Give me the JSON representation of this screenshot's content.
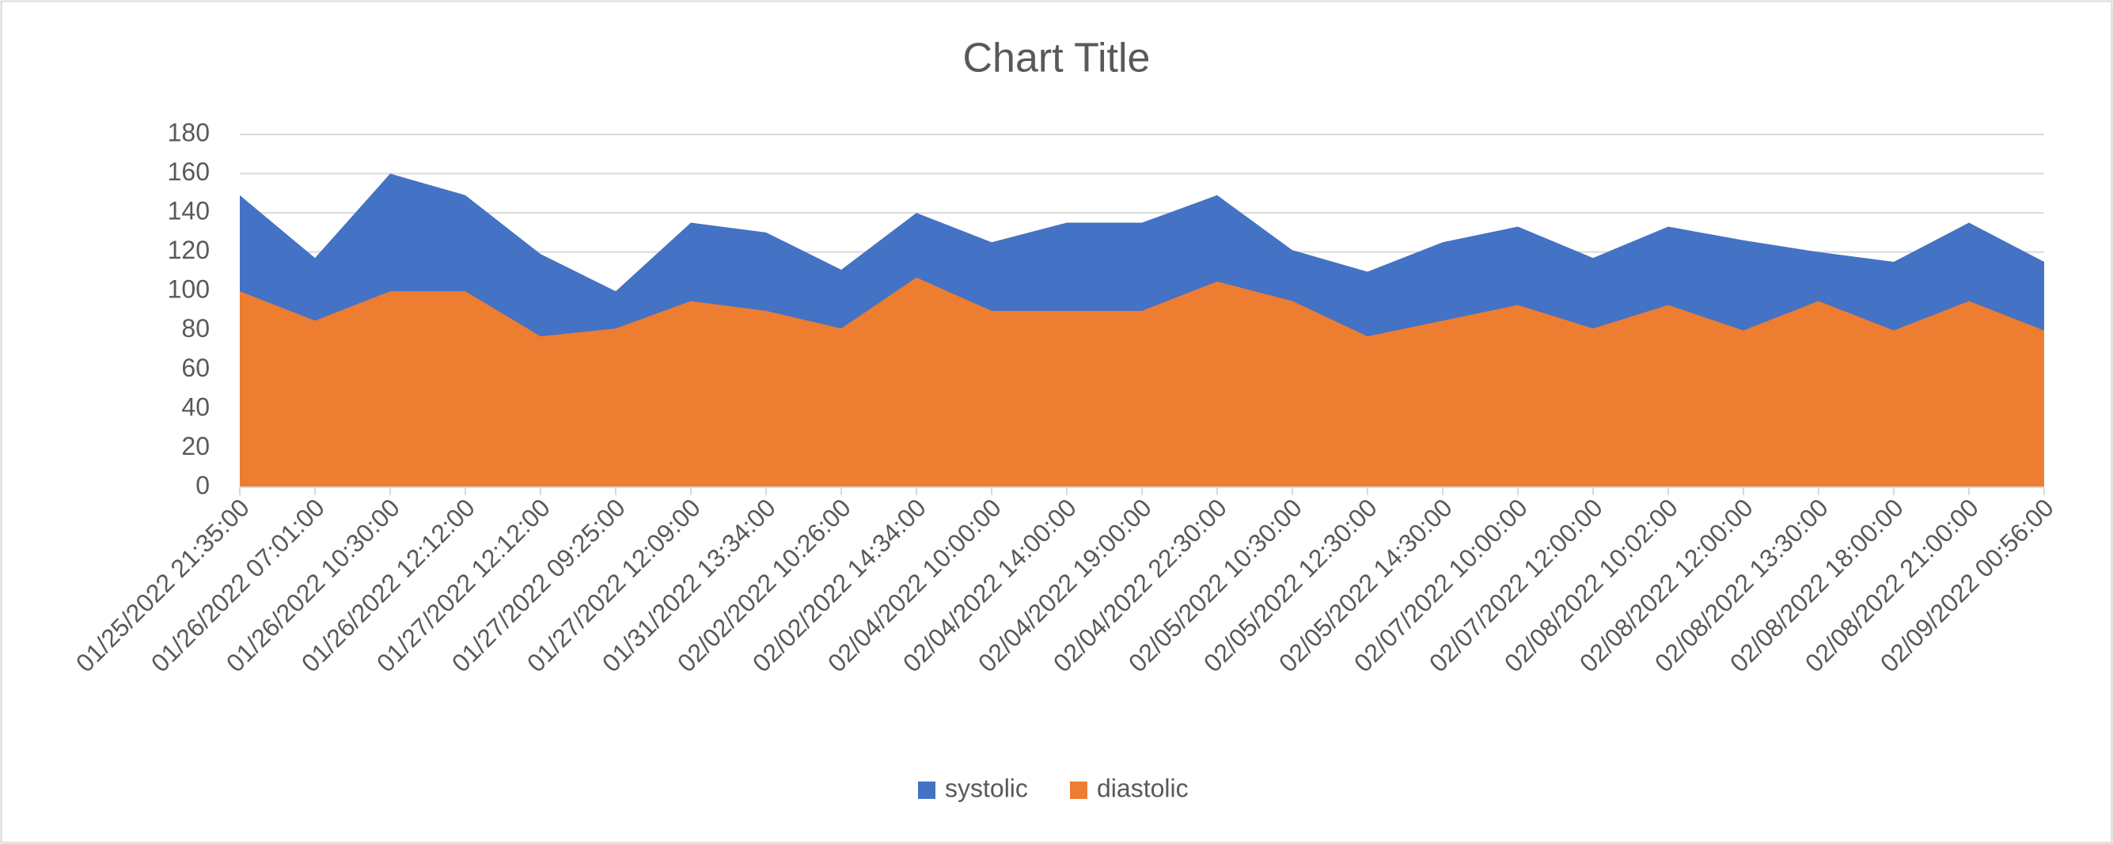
{
  "chart_data": {
    "type": "area",
    "title": "Chart Title",
    "categories": [
      "01/25/2022 21:35:00",
      "01/26/2022 07:01:00",
      "01/26/2022 10:30:00",
      "01/26/2022 12:12:00",
      "01/27/2022 12:12:00",
      "01/27/2022 09:25:00",
      "01/27/2022 12:09:00",
      "01/31/2022 13:34:00",
      "02/02/2022 10:26:00",
      "02/02/2022 14:34:00",
      "02/04/2022 10:00:00",
      "02/04/2022 14:00:00",
      "02/04/2022 19:00:00",
      "02/04/2022 22:30:00",
      "02/05/2022 10:30:00",
      "02/05/2022 12:30:00",
      "02/05/2022 14:30:00",
      "02/07/2022 10:00:00",
      "02/07/2022 12:00:00",
      "02/08/2022 10:02:00",
      "02/08/2022 12:00:00",
      "02/08/2022 13:30:00",
      "02/08/2022 18:00:00",
      "02/08/2022 21:00:00",
      "02/09/2022 00:56:00"
    ],
    "series": [
      {
        "name": "systolic",
        "color": "#4472c4",
        "values": [
          149,
          117,
          160,
          149,
          119,
          100,
          135,
          130,
          111,
          140,
          125,
          135,
          135,
          149,
          121,
          110,
          125,
          133,
          117,
          133,
          126,
          120,
          115,
          135,
          115
        ]
      },
      {
        "name": "diastolic",
        "color": "#ed7d31",
        "values": [
          100,
          85,
          100,
          100,
          77,
          81,
          95,
          90,
          81,
          107,
          90,
          90,
          90,
          105,
          95,
          77,
          85,
          93,
          81,
          93,
          80,
          95,
          80,
          95,
          80
        ]
      }
    ],
    "ylim": [
      0,
      180
    ],
    "yticks": [
      0,
      20,
      40,
      60,
      80,
      100,
      120,
      140,
      160,
      180
    ],
    "grid": true,
    "legend": "bottom"
  }
}
